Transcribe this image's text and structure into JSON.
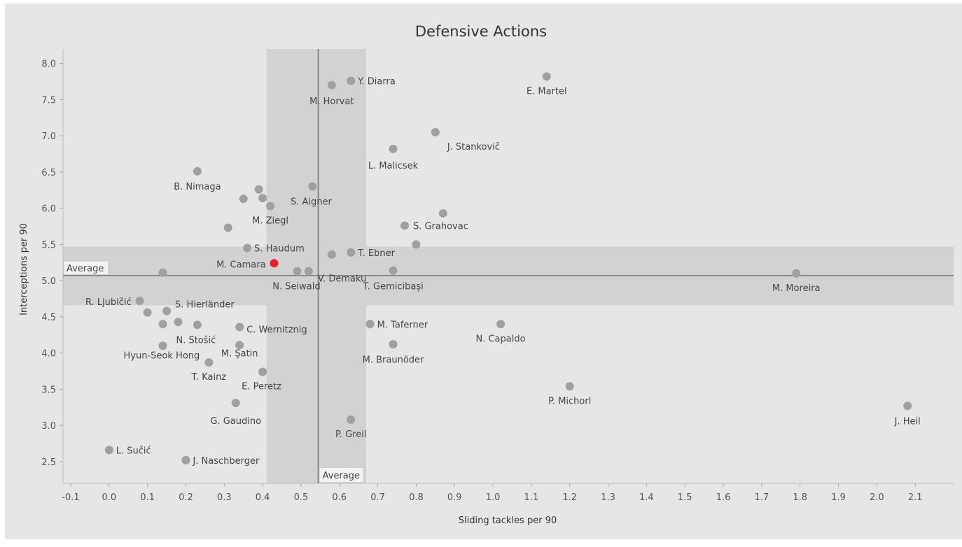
{
  "chart_data": {
    "type": "scatter",
    "title": "Defensive Actions",
    "xlabel": "Sliding tackles per 90",
    "ylabel": "Interceptions per 90",
    "xlim": [
      -0.12,
      2.2
    ],
    "ylim": [
      2.2,
      8.2
    ],
    "x_ticks": [
      -0.1,
      0.0,
      0.1,
      0.2,
      0.3,
      0.4,
      0.5,
      0.6,
      0.7,
      0.8,
      0.9,
      1.0,
      1.1,
      1.2,
      1.3,
      1.4,
      1.5,
      1.6,
      1.7,
      1.8,
      1.9,
      2.0,
      2.1
    ],
    "y_ticks": [
      2.5,
      3.0,
      3.5,
      4.0,
      4.5,
      5.0,
      5.5,
      6.0,
      6.5,
      7.0,
      7.5,
      8.0
    ],
    "grid": false,
    "colors": {
      "background": "#e6e6e6",
      "band": "#d2d2d2",
      "average_line": "#888888",
      "point": "#a0a0a0",
      "highlight": "#e8202e"
    },
    "average_x": {
      "value": 0.545,
      "band": [
        0.41,
        0.67
      ],
      "label": "Average"
    },
    "average_y": {
      "value": 5.07,
      "band": [
        4.66,
        5.47
      ],
      "label": "Average"
    },
    "points": [
      {
        "x": 1.14,
        "y": 7.82,
        "label": "E. Martel"
      },
      {
        "x": 0.63,
        "y": 7.76,
        "label": "Y. Diarra"
      },
      {
        "x": 0.58,
        "y": 7.7,
        "label": "M. Horvat"
      },
      {
        "x": 0.85,
        "y": 7.05,
        "label": "J. Stankovič"
      },
      {
        "x": 0.74,
        "y": 6.82,
        "label": "L. Malicsek"
      },
      {
        "x": 0.23,
        "y": 6.51,
        "label": "B. Nimaga"
      },
      {
        "x": 0.53,
        "y": 6.3,
        "label": "S. Aigner"
      },
      {
        "x": 0.39,
        "y": 6.26,
        "label": ""
      },
      {
        "x": 0.35,
        "y": 6.13,
        "label": ""
      },
      {
        "x": 0.4,
        "y": 6.14,
        "label": ""
      },
      {
        "x": 0.42,
        "y": 6.03,
        "label": "M. Ziegl"
      },
      {
        "x": 0.87,
        "y": 5.93,
        "label": ""
      },
      {
        "x": 0.77,
        "y": 5.76,
        "label": "S. Grahovac"
      },
      {
        "x": 0.31,
        "y": 5.73,
        "label": ""
      },
      {
        "x": 0.8,
        "y": 5.5,
        "label": ""
      },
      {
        "x": 0.36,
        "y": 5.45,
        "label": "S. Haudum"
      },
      {
        "x": 0.63,
        "y": 5.39,
        "label": "T. Ebner"
      },
      {
        "x": 0.58,
        "y": 5.36,
        "label": ""
      },
      {
        "x": 0.43,
        "y": 5.24,
        "label": "M. Camara",
        "highlight": true
      },
      {
        "x": 0.49,
        "y": 5.13,
        "label": "N. Seiwald"
      },
      {
        "x": 0.14,
        "y": 5.11,
        "label": ""
      },
      {
        "x": 0.74,
        "y": 5.14,
        "label": "T. Gemicibaşi"
      },
      {
        "x": 1.79,
        "y": 5.1,
        "label": "M. Moreira"
      },
      {
        "x": 0.08,
        "y": 4.72,
        "label": "R. Ljubičić"
      },
      {
        "x": 0.15,
        "y": 4.58,
        "label": "S. Hierländer"
      },
      {
        "x": 0.1,
        "y": 4.56,
        "label": ""
      },
      {
        "x": 0.18,
        "y": 4.43,
        "label": ""
      },
      {
        "x": 0.14,
        "y": 4.4,
        "label": ""
      },
      {
        "x": 0.23,
        "y": 4.39,
        "label": "N. Stošić"
      },
      {
        "x": 0.34,
        "y": 4.36,
        "label": "C. Wernitznig"
      },
      {
        "x": 0.68,
        "y": 4.4,
        "label": "M. Taferner"
      },
      {
        "x": 1.02,
        "y": 4.4,
        "label": "N. Capaldo"
      },
      {
        "x": 0.74,
        "y": 4.12,
        "label": "M. Braunöder"
      },
      {
        "x": 0.14,
        "y": 4.1,
        "label": "Hyun-Seok Hong"
      },
      {
        "x": 0.34,
        "y": 4.11,
        "label": "M. Şatin"
      },
      {
        "x": 0.26,
        "y": 3.87,
        "label": "T. Kainz"
      },
      {
        "x": 0.4,
        "y": 3.74,
        "label": "E. Peretz"
      },
      {
        "x": 1.2,
        "y": 3.54,
        "label": "P. Michorl"
      },
      {
        "x": 0.33,
        "y": 3.31,
        "label": "G. Gaudino"
      },
      {
        "x": 2.08,
        "y": 3.27,
        "label": "J. Heil"
      },
      {
        "x": 0.63,
        "y": 3.08,
        "label": "P. Greil"
      },
      {
        "x": 0.0,
        "y": 2.66,
        "label": "L. Sučić"
      },
      {
        "x": 0.2,
        "y": 2.52,
        "label": "J. Naschberger"
      },
      {
        "x": 0.52,
        "y": 5.13,
        "label": "V. Demaku"
      }
    ]
  }
}
